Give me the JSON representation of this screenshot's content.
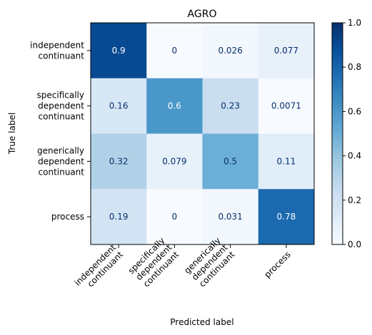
{
  "chart_data": {
    "type": "heatmap",
    "title": "AGRO",
    "xlabel": "Predicted label",
    "ylabel": "True label",
    "row_labels": [
      [
        "independent",
        "continuant"
      ],
      [
        "specifically",
        "dependent",
        "continuant"
      ],
      [
        "generically",
        "dependent",
        "continuant"
      ],
      [
        "process"
      ]
    ],
    "col_labels": [
      [
        "independent",
        "continuant"
      ],
      [
        "specifically",
        "dependent",
        "continuant"
      ],
      [
        "generically",
        "dependent",
        "continuant"
      ],
      [
        "process"
      ]
    ],
    "values": [
      [
        0.9,
        0,
        0.026,
        0.077
      ],
      [
        0.16,
        0.6,
        0.23,
        0.0071
      ],
      [
        0.32,
        0.079,
        0.5,
        0.11
      ],
      [
        0.19,
        0,
        0.031,
        0.78
      ]
    ],
    "value_labels": [
      [
        "0.9",
        "0",
        "0.026",
        "0.077"
      ],
      [
        "0.16",
        "0.6",
        "0.23",
        "0.0071"
      ],
      [
        "0.32",
        "0.079",
        "0.5",
        "0.11"
      ],
      [
        "0.19",
        "0",
        "0.031",
        "0.78"
      ]
    ],
    "colorbar": {
      "range": [
        0,
        1
      ],
      "ticks": [
        "0.0",
        "0.2",
        "0.4",
        "0.6",
        "0.8",
        "1.0"
      ]
    },
    "colormap": "Blues"
  }
}
